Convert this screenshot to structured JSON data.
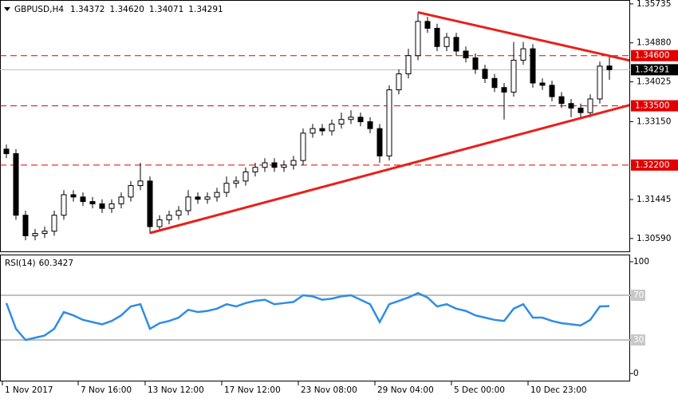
{
  "chart_data": {
    "type": "candlestick",
    "header": {
      "symbol": "GBPUSD,H4",
      "ohlc": [
        "1.34372",
        "1.34620",
        "1.34071",
        "1.34291"
      ]
    },
    "categories": [
      "1 Nov 2017",
      null,
      null,
      null,
      null,
      null,
      null,
      null,
      "7 Nov 16:00",
      null,
      null,
      null,
      null,
      null,
      null,
      "13 Nov 12:00",
      null,
      null,
      null,
      null,
      null,
      null,
      null,
      "17 Nov 12:00",
      null,
      null,
      null,
      null,
      null,
      null,
      null,
      "23 Nov 08:00",
      null,
      null,
      null,
      null,
      null,
      null,
      null,
      "29 Nov 04:00",
      null,
      null,
      null,
      null,
      null,
      null,
      null,
      "5 Dec 00:00",
      null,
      null,
      null,
      null,
      null,
      null,
      null,
      "10 Dec 23:00",
      null,
      null,
      null,
      null,
      null,
      null,
      null,
      null
    ],
    "open": [
      1.3255,
      1.3245,
      1.311,
      1.3065,
      1.307,
      1.3075,
      1.311,
      1.3155,
      1.315,
      1.314,
      1.3135,
      1.3125,
      1.3135,
      1.315,
      1.3175,
      1.3185,
      1.3085,
      1.31,
      1.311,
      1.312,
      1.315,
      1.3145,
      1.315,
      1.316,
      1.318,
      1.3185,
      1.3205,
      1.3215,
      1.3225,
      1.3215,
      1.322,
      1.323,
      1.329,
      1.33,
      1.3295,
      1.331,
      1.332,
      1.3325,
      1.3315,
      1.33,
      1.324,
      1.3385,
      1.342,
      1.346,
      1.3535,
      1.352,
      1.348,
      1.35,
      1.347,
      1.3455,
      1.343,
      1.341,
      1.339,
      1.338,
      1.345,
      1.3475,
      1.34,
      1.3395,
      1.337,
      1.3355,
      1.3345,
      1.3335,
      1.3365,
      1.34372
    ],
    "high": [
      1.3265,
      1.3255,
      1.312,
      1.308,
      1.3085,
      1.312,
      1.3165,
      1.3165,
      1.316,
      1.315,
      1.3145,
      1.3145,
      1.316,
      1.3185,
      1.3225,
      1.3195,
      1.311,
      1.312,
      1.313,
      1.3165,
      1.316,
      1.316,
      1.317,
      1.3195,
      1.3195,
      1.3215,
      1.3225,
      1.3235,
      1.3235,
      1.323,
      1.324,
      1.33,
      1.331,
      1.331,
      1.332,
      1.3335,
      1.334,
      1.3335,
      1.3325,
      1.331,
      1.3395,
      1.343,
      1.3475,
      1.3555,
      1.3545,
      1.353,
      1.351,
      1.351,
      1.348,
      1.3465,
      1.344,
      1.342,
      1.34,
      1.349,
      1.349,
      1.3485,
      1.341,
      1.3405,
      1.338,
      1.3365,
      1.3355,
      1.3375,
      1.3447,
      1.3462
    ],
    "low": [
      1.3235,
      1.31,
      1.3055,
      1.3055,
      1.306,
      1.3065,
      1.31,
      1.314,
      1.313,
      1.3125,
      1.3115,
      1.3115,
      1.3125,
      1.314,
      1.3165,
      1.307,
      1.3075,
      1.309,
      1.31,
      1.311,
      1.3135,
      1.3135,
      1.314,
      1.315,
      1.317,
      1.3175,
      1.3195,
      1.3205,
      1.3205,
      1.3205,
      1.321,
      1.322,
      1.328,
      1.3285,
      1.3285,
      1.33,
      1.331,
      1.3305,
      1.329,
      1.3225,
      1.323,
      1.3375,
      1.341,
      1.345,
      1.351,
      1.347,
      1.347,
      1.346,
      1.3445,
      1.342,
      1.34,
      1.338,
      1.332,
      1.337,
      1.344,
      1.339,
      1.3385,
      1.336,
      1.3345,
      1.3325,
      1.3325,
      1.3325,
      1.3355,
      1.34071
    ],
    "close": [
      1.3245,
      1.311,
      1.3065,
      1.307,
      1.3075,
      1.311,
      1.3155,
      1.315,
      1.314,
      1.3135,
      1.3125,
      1.3135,
      1.315,
      1.3175,
      1.3185,
      1.3085,
      1.31,
      1.311,
      1.312,
      1.315,
      1.3145,
      1.315,
      1.316,
      1.318,
      1.3185,
      1.3205,
      1.3215,
      1.3225,
      1.3215,
      1.322,
      1.323,
      1.329,
      1.33,
      1.3295,
      1.331,
      1.332,
      1.3325,
      1.3315,
      1.33,
      1.324,
      1.3385,
      1.342,
      1.346,
      1.3535,
      1.352,
      1.348,
      1.35,
      1.347,
      1.3455,
      1.343,
      1.341,
      1.339,
      1.338,
      1.345,
      1.3475,
      1.34,
      1.3395,
      1.337,
      1.3355,
      1.3345,
      1.3335,
      1.3365,
      1.3437,
      1.34291
    ],
    "ylim": [
      1.3029,
      1.3582
    ],
    "yticks": [
      1.35735,
      {
        "value": 1.3488,
        "label": "1.34880"
      },
      1.34025,
      {
        "value": 1.3315,
        "label": "1.33150"
      },
      1.31445,
      {
        "value": 1.3059,
        "label": "1.30590"
      }
    ],
    "levels": [
      {
        "value": 1.346,
        "label": "1.34600"
      },
      {
        "value": 1.335,
        "label": "1.33500"
      },
      {
        "value": 1.322,
        "label": "1.32200"
      }
    ],
    "level_color": "#e00000",
    "current": {
      "value": 1.34291,
      "label": "1.34291"
    },
    "trendlines": [
      {
        "x": [
          43,
          65.2
        ],
        "y": [
          1.3555,
          1.3449
        ]
      },
      {
        "x": [
          15,
          65.2
        ],
        "y": [
          1.3071,
          1.3352
        ]
      }
    ],
    "trendline_color": "#e8201a",
    "rsi": {
      "title": "RSI(14)",
      "values": [
        63,
        40,
        30,
        32,
        34,
        40,
        55,
        52,
        48,
        46,
        44,
        47,
        52,
        60,
        62,
        40,
        45,
        47,
        50,
        57,
        55,
        56,
        58,
        62,
        60,
        63,
        65,
        66,
        62,
        63,
        64,
        70,
        69,
        66,
        67,
        69,
        70,
        66,
        62,
        46,
        62,
        65,
        68,
        72,
        68,
        60,
        62,
        58,
        56,
        52,
        50,
        48,
        47,
        58,
        62,
        50,
        50,
        47,
        45,
        44,
        43,
        48,
        60,
        60.3427
      ],
      "ylim": [
        -7.1,
        105.7
      ],
      "yticks": [
        100,
        70,
        30,
        0
      ],
      "levels": [
        70,
        30
      ],
      "color": "#2f8de4"
    }
  }
}
